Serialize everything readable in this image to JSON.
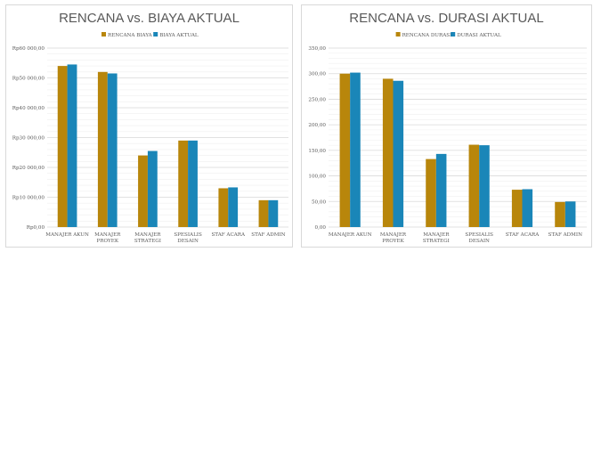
{
  "colors": {
    "planned": "#b8860b",
    "actual": "#1a86b8",
    "grid_major": "#d9d9d9",
    "grid_minor": "#efefef",
    "text": "#595959"
  },
  "chart_data": [
    {
      "type": "bar",
      "title": "RENCANA vs. BIAYA AKTUAL",
      "categories": [
        [
          "MANAJER AKUN"
        ],
        [
          "MANAJER",
          "PROYEK"
        ],
        [
          "MANAJER",
          "STRATEGI"
        ],
        [
          "SPESIALIS",
          "DESAIN"
        ],
        [
          "STAF ACARA"
        ],
        [
          "STAF ADMIN"
        ]
      ],
      "series": [
        {
          "name": "RENCANA BIAYA",
          "values": [
            54000,
            52000,
            24000,
            29000,
            13000,
            9000
          ]
        },
        {
          "name": "BIAYA AKTUAL",
          "values": [
            54500,
            51500,
            25500,
            29000,
            13300,
            9000
          ]
        }
      ],
      "ylim": [
        0,
        60000
      ],
      "yticks": [
        0,
        10000,
        20000,
        30000,
        40000,
        50000,
        60000
      ],
      "ytick_labels": [
        "Rp0,00",
        "Rp10 000,00",
        "Rp20 000,00",
        "Rp30 000,00",
        "Rp40 000,00",
        "Rp50 000,00",
        "Rp60 000,00"
      ],
      "legend": "top-center",
      "grid": true
    },
    {
      "type": "bar",
      "title": "RENCANA vs. DURASI AKTUAL",
      "categories": [
        [
          "MANAJER AKUN"
        ],
        [
          "MANAJER",
          "PROYEK"
        ],
        [
          "MANAJER",
          "STRATEGI"
        ],
        [
          "SPESIALIS",
          "DESAIN"
        ],
        [
          "STAF ACARA"
        ],
        [
          "STAF ADMIN"
        ]
      ],
      "series": [
        {
          "name": "RENCANA DURASI",
          "values": [
            300,
            290,
            133,
            161,
            73,
            49
          ]
        },
        {
          "name": "DURASI AKTUAL",
          "values": [
            302,
            286,
            143,
            160,
            74,
            50
          ]
        }
      ],
      "ylim": [
        0,
        350
      ],
      "yticks": [
        0,
        50,
        100,
        150,
        200,
        250,
        300,
        350
      ],
      "ytick_labels": [
        "0,00",
        "50,00",
        "100,00",
        "150,00",
        "200,00",
        "250,00",
        "300,00",
        "350,00"
      ],
      "legend": "top-center",
      "grid": true
    }
  ]
}
